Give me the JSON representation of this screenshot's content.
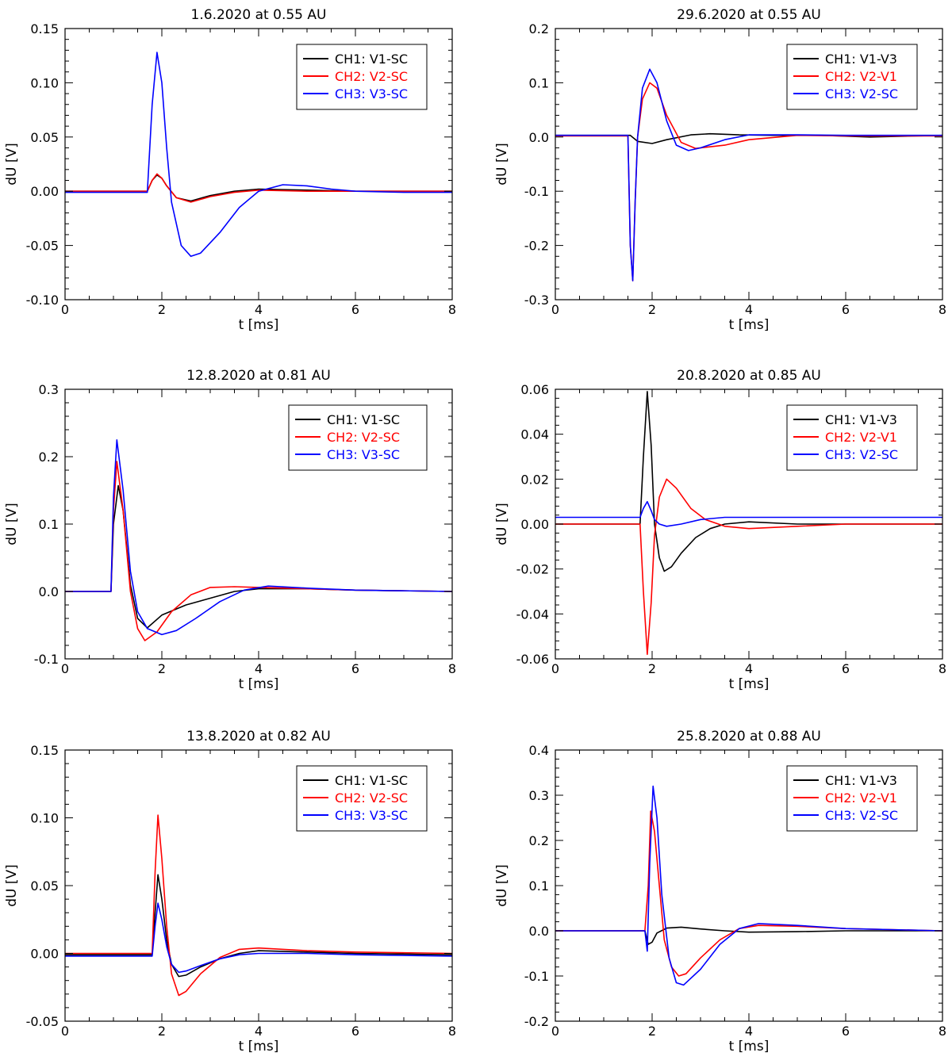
{
  "figure": {
    "panel_count": 6
  },
  "colors": {
    "ch1": "#000000",
    "ch2": "#ff0000",
    "ch3": "#0000ff"
  },
  "chart_data": [
    {
      "type": "line",
      "title": "1.6.2020 at 0.55 AU",
      "xlabel": "t [ms]",
      "ylabel": "dU [V]",
      "xlim": [
        0,
        8
      ],
      "ylim": [
        -0.1,
        0.15
      ],
      "xticks": [
        0,
        2,
        4,
        6,
        8
      ],
      "xtick_labels": [
        "0",
        "2",
        "4",
        "6",
        "8"
      ],
      "yticks": [
        -0.1,
        -0.05,
        0.0,
        0.05,
        0.1,
        0.15
      ],
      "ytick_labels": [
        "-0.10",
        "-0.05",
        "0.00",
        "0.05",
        "0.10",
        "0.15"
      ],
      "legend": {
        "position": "top-right",
        "entries": [
          "CH1: V1-SC",
          "CH2: V2-SC",
          "CH3: V3-SC"
        ]
      },
      "series": [
        {
          "name": "CH1: V1-SC",
          "color": "#000000",
          "x": [
            0,
            1.7,
            1.8,
            1.9,
            2.0,
            2.1,
            2.3,
            2.6,
            3.0,
            3.5,
            4.0,
            5.0,
            6.0,
            8.0
          ],
          "y": [
            0,
            0.0,
            0.01,
            0.015,
            0.012,
            0.005,
            -0.006,
            -0.009,
            -0.004,
            0.0,
            0.002,
            0.001,
            0,
            0
          ]
        },
        {
          "name": "CH2: V2-SC",
          "color": "#ff0000",
          "x": [
            0,
            1.7,
            1.8,
            1.9,
            2.0,
            2.1,
            2.3,
            2.6,
            3.0,
            3.5,
            4.0,
            5.0,
            6.0,
            8.0
          ],
          "y": [
            0,
            0.0,
            0.01,
            0.016,
            0.012,
            0.005,
            -0.006,
            -0.01,
            -0.005,
            -0.001,
            0.001,
            0.0,
            0,
            0
          ]
        },
        {
          "name": "CH3: V3-SC",
          "color": "#0000ff",
          "x": [
            0,
            1.7,
            1.8,
            1.9,
            2.0,
            2.1,
            2.2,
            2.4,
            2.6,
            2.8,
            3.2,
            3.6,
            4.0,
            4.5,
            5.0,
            5.5,
            6.0,
            7.0,
            8.0
          ],
          "y": [
            -0.001,
            -0.001,
            0.08,
            0.128,
            0.1,
            0.04,
            -0.01,
            -0.05,
            -0.06,
            -0.057,
            -0.038,
            -0.015,
            0.0,
            0.006,
            0.005,
            0.002,
            0.0,
            -0.001,
            -0.001
          ]
        }
      ]
    },
    {
      "type": "line",
      "title": "29.6.2020 at 0.55 AU",
      "xlabel": "t [ms]",
      "ylabel": "dU [V]",
      "xlim": [
        0,
        8
      ],
      "ylim": [
        -0.3,
        0.2
      ],
      "xticks": [
        0,
        2,
        4,
        6,
        8
      ],
      "xtick_labels": [
        "0",
        "2",
        "4",
        "6",
        "8"
      ],
      "yticks": [
        -0.3,
        -0.2,
        -0.1,
        0.0,
        0.1,
        0.2
      ],
      "ytick_labels": [
        "-0.3",
        "-0.2",
        "-0.1",
        "0.0",
        "0.1",
        "0.2"
      ],
      "legend": {
        "position": "top-right",
        "entries": [
          "CH1: V1-V3",
          "CH2: V2-V1",
          "CH3: V2-SC"
        ]
      },
      "series": [
        {
          "name": "CH1: V1-V3",
          "color": "#000000",
          "x": [
            0,
            1.55,
            1.7,
            2.0,
            2.3,
            2.8,
            3.2,
            3.8,
            4.5,
            5.5,
            6.5,
            8.0
          ],
          "y": [
            0.003,
            0.003,
            -0.008,
            -0.012,
            -0.005,
            0.004,
            0.006,
            0.004,
            0.003,
            0.003,
            0.0,
            0.003
          ]
        },
        {
          "name": "CH2: V2-V1",
          "color": "#ff0000",
          "x": [
            0,
            1.5,
            1.55,
            1.6,
            1.65,
            1.7,
            1.8,
            1.95,
            2.1,
            2.3,
            2.6,
            2.9,
            3.5,
            4.0,
            5.0,
            6.0,
            8.0
          ],
          "y": [
            0.002,
            0.002,
            -0.2,
            -0.265,
            -0.12,
            0.0,
            0.07,
            0.1,
            0.09,
            0.04,
            -0.01,
            -0.021,
            -0.015,
            -0.005,
            0.003,
            0.002,
            0.002
          ]
        },
        {
          "name": "CH3: V2-SC",
          "color": "#0000ff",
          "x": [
            0,
            1.5,
            1.55,
            1.6,
            1.65,
            1.7,
            1.8,
            1.95,
            2.1,
            2.3,
            2.5,
            2.75,
            3.0,
            3.5,
            4.0,
            5.0,
            6.0,
            8.0
          ],
          "y": [
            0.003,
            0.003,
            -0.2,
            -0.265,
            -0.12,
            0.0,
            0.09,
            0.125,
            0.1,
            0.03,
            -0.015,
            -0.025,
            -0.02,
            -0.005,
            0.004,
            0.004,
            0.003,
            0.003
          ]
        }
      ]
    },
    {
      "type": "line",
      "title": "12.8.2020 at 0.81 AU",
      "xlabel": "t [ms]",
      "ylabel": "dU [V]",
      "xlim": [
        0,
        8
      ],
      "ylim": [
        -0.1,
        0.3
      ],
      "xticks": [
        0,
        2,
        4,
        6,
        8
      ],
      "xtick_labels": [
        "0",
        "2",
        "4",
        "6",
        "8"
      ],
      "yticks": [
        -0.1,
        0.0,
        0.1,
        0.2,
        0.3
      ],
      "ytick_labels": [
        "-0.1",
        "0.0",
        "0.1",
        "0.2",
        "0.3"
      ],
      "legend": {
        "position": "top-right",
        "entries": [
          "CH1: V1-SC",
          "CH2: V2-SC",
          "CH3: V3-SC"
        ]
      },
      "series": [
        {
          "name": "CH1: V1-SC",
          "color": "#000000",
          "x": [
            0,
            0.95,
            1.0,
            1.1,
            1.2,
            1.35,
            1.5,
            1.7,
            2.0,
            2.5,
            3.0,
            3.5,
            4.0,
            5.0,
            6.0,
            8.0
          ],
          "y": [
            0,
            0,
            0.1,
            0.157,
            0.12,
            0.01,
            -0.04,
            -0.054,
            -0.035,
            -0.02,
            -0.01,
            0.0,
            0.004,
            0.004,
            0.002,
            0
          ]
        },
        {
          "name": "CH2: V2-SC",
          "color": "#ff0000",
          "x": [
            0,
            0.95,
            1.0,
            1.07,
            1.2,
            1.35,
            1.5,
            1.65,
            1.9,
            2.2,
            2.6,
            3.0,
            3.5,
            4.0,
            5.0,
            6.0,
            8.0
          ],
          "y": [
            0,
            0,
            0.12,
            0.193,
            0.12,
            0.0,
            -0.055,
            -0.073,
            -0.06,
            -0.03,
            -0.005,
            0.006,
            0.007,
            0.006,
            0.004,
            0.002,
            0
          ]
        },
        {
          "name": "CH3: V3-SC",
          "color": "#0000ff",
          "x": [
            0,
            0.95,
            1.0,
            1.07,
            1.2,
            1.35,
            1.5,
            1.7,
            2.0,
            2.3,
            2.7,
            3.2,
            3.7,
            4.2,
            5.0,
            6.0,
            8.0
          ],
          "y": [
            0,
            0,
            0.14,
            0.225,
            0.15,
            0.03,
            -0.03,
            -0.055,
            -0.064,
            -0.058,
            -0.04,
            -0.015,
            0.002,
            0.008,
            0.005,
            0.002,
            0
          ]
        }
      ]
    },
    {
      "type": "line",
      "title": "20.8.2020 at 0.85 AU",
      "xlabel": "t [ms]",
      "ylabel": "dU [V]",
      "xlim": [
        0,
        8
      ],
      "ylim": [
        -0.06,
        0.06
      ],
      "xticks": [
        0,
        2,
        4,
        6,
        8
      ],
      "xtick_labels": [
        "0",
        "2",
        "4",
        "6",
        "8"
      ],
      "yticks": [
        -0.06,
        -0.04,
        -0.02,
        0.0,
        0.02,
        0.04,
        0.06
      ],
      "ytick_labels": [
        "-0.06",
        "-0.04",
        "-0.02",
        "0.00",
        "0.02",
        "0.04",
        "0.06"
      ],
      "legend": {
        "position": "top-right",
        "entries": [
          "CH1: V1-V3",
          "CH2: V2-V1",
          "CH3: V2-SC"
        ]
      },
      "series": [
        {
          "name": "CH1: V1-V3",
          "color": "#000000",
          "x": [
            0,
            1.75,
            1.82,
            1.9,
            1.98,
            2.05,
            2.15,
            2.25,
            2.4,
            2.6,
            2.9,
            3.2,
            3.5,
            4.0,
            5.0,
            6.0,
            8.0
          ],
          "y": [
            0,
            0,
            0.03,
            0.059,
            0.035,
            0.0,
            -0.015,
            -0.021,
            -0.019,
            -0.013,
            -0.006,
            -0.002,
            0.0,
            0.001,
            0.0,
            0,
            0
          ]
        },
        {
          "name": "CH2: V2-V1",
          "color": "#ff0000",
          "x": [
            0,
            1.75,
            1.82,
            1.9,
            1.98,
            2.05,
            2.15,
            2.3,
            2.5,
            2.8,
            3.1,
            3.5,
            4.0,
            5.0,
            6.0,
            8.0
          ],
          "y": [
            0,
            0,
            -0.03,
            -0.058,
            -0.035,
            -0.005,
            0.012,
            0.02,
            0.016,
            0.007,
            0.002,
            -0.001,
            -0.002,
            -0.001,
            0,
            0
          ]
        },
        {
          "name": "CH3: V2-SC",
          "color": "#0000ff",
          "x": [
            0,
            1.75,
            1.82,
            1.9,
            1.98,
            2.05,
            2.15,
            2.3,
            2.6,
            3.0,
            3.5,
            4.0,
            5.0,
            6.0,
            8.0
          ],
          "y": [
            0.003,
            0.003,
            0.007,
            0.01,
            0.006,
            0.002,
            0.0,
            -0.001,
            0.0,
            0.002,
            0.003,
            0.003,
            0.003,
            0.003,
            0.003
          ]
        }
      ]
    },
    {
      "type": "line",
      "title": "13.8.2020 at 0.82 AU",
      "xlabel": "t [ms]",
      "ylabel": "dU [V]",
      "xlim": [
        0,
        8
      ],
      "ylim": [
        -0.05,
        0.15
      ],
      "xticks": [
        0,
        2,
        4,
        6,
        8
      ],
      "xtick_labels": [
        "0",
        "2",
        "4",
        "6",
        "8"
      ],
      "yticks": [
        -0.05,
        0.0,
        0.05,
        0.1,
        0.15
      ],
      "ytick_labels": [
        "-0.05",
        "0.00",
        "0.05",
        "0.10",
        "0.15"
      ],
      "legend": {
        "position": "top-right",
        "entries": [
          "CH1: V1-SC",
          "CH2: V2-SC",
          "CH3: V3-SC"
        ]
      },
      "series": [
        {
          "name": "CH1: V1-SC",
          "color": "#000000",
          "x": [
            0,
            1.8,
            1.86,
            1.92,
            2.0,
            2.1,
            2.2,
            2.35,
            2.5,
            2.8,
            3.2,
            3.6,
            4.0,
            5.0,
            6.0,
            8.0
          ],
          "y": [
            -0.001,
            -0.001,
            0.03,
            0.058,
            0.04,
            0.01,
            -0.008,
            -0.017,
            -0.016,
            -0.01,
            -0.004,
            0.0,
            0.002,
            0.001,
            0.0,
            -0.001
          ]
        },
        {
          "name": "CH2: V2-SC",
          "color": "#ff0000",
          "x": [
            0,
            1.8,
            1.86,
            1.92,
            2.0,
            2.1,
            2.2,
            2.35,
            2.5,
            2.8,
            3.2,
            3.6,
            4.0,
            5.0,
            6.0,
            8.0
          ],
          "y": [
            0.0,
            0.0,
            0.06,
            0.102,
            0.07,
            0.02,
            -0.015,
            -0.031,
            -0.028,
            -0.015,
            -0.003,
            0.003,
            0.004,
            0.002,
            0.001,
            0.0
          ]
        },
        {
          "name": "CH3: V3-SC",
          "color": "#0000ff",
          "x": [
            0,
            1.8,
            1.86,
            1.92,
            2.0,
            2.1,
            2.2,
            2.35,
            2.5,
            2.8,
            3.2,
            3.6,
            4.0,
            5.0,
            6.0,
            8.0
          ],
          "y": [
            -0.002,
            -0.002,
            0.02,
            0.037,
            0.025,
            0.005,
            -0.008,
            -0.014,
            -0.013,
            -0.009,
            -0.004,
            -0.001,
            0.0,
            0.0,
            -0.001,
            -0.002
          ]
        }
      ]
    },
    {
      "type": "line",
      "title": "25.8.2020 at 0.88 AU",
      "xlabel": "t [ms]",
      "ylabel": "dU [V]",
      "xlim": [
        0,
        8
      ],
      "ylim": [
        -0.2,
        0.4
      ],
      "xticks": [
        0,
        2,
        4,
        6,
        8
      ],
      "xtick_labels": [
        "0",
        "2",
        "4",
        "6",
        "8"
      ],
      "yticks": [
        -0.2,
        -0.1,
        0.0,
        0.1,
        0.2,
        0.3,
        0.4
      ],
      "ytick_labels": [
        "-0.2",
        "-0.1",
        "0.0",
        "0.1",
        "0.2",
        "0.3",
        "0.4"
      ],
      "legend": {
        "position": "top-right",
        "entries": [
          "CH1: V1-V3",
          "CH2: V2-V1",
          "CH3: V2-SC"
        ]
      },
      "series": [
        {
          "name": "CH1: V1-V3",
          "color": "#000000",
          "x": [
            0,
            1.85,
            1.92,
            2.0,
            2.1,
            2.3,
            2.6,
            3.0,
            3.5,
            4.0,
            5.0,
            6.0,
            8.0
          ],
          "y": [
            0.0,
            0.0,
            -0.03,
            -0.025,
            -0.005,
            0.006,
            0.008,
            0.004,
            0.0,
            -0.003,
            -0.002,
            0.0,
            0.0
          ]
        },
        {
          "name": "CH2: V2-V1",
          "color": "#ff0000",
          "x": [
            0,
            1.85,
            1.92,
            1.97,
            2.05,
            2.15,
            2.25,
            2.4,
            2.55,
            2.7,
            3.0,
            3.4,
            3.8,
            4.2,
            5.0,
            6.0,
            8.0
          ],
          "y": [
            0.0,
            0.0,
            0.1,
            0.265,
            0.22,
            0.1,
            -0.02,
            -0.08,
            -0.1,
            -0.095,
            -0.06,
            -0.02,
            0.005,
            0.012,
            0.01,
            0.005,
            0.0
          ]
        },
        {
          "name": "CH3: V2-SC",
          "color": "#0000ff",
          "x": [
            0,
            1.85,
            1.9,
            1.95,
            2.02,
            2.1,
            2.2,
            2.35,
            2.5,
            2.65,
            3.0,
            3.4,
            3.8,
            4.2,
            5.0,
            6.0,
            8.0
          ],
          "y": [
            0.0,
            0.0,
            -0.045,
            0.15,
            0.32,
            0.25,
            0.08,
            -0.06,
            -0.115,
            -0.12,
            -0.085,
            -0.03,
            0.005,
            0.016,
            0.012,
            0.005,
            0.0
          ]
        }
      ]
    }
  ]
}
